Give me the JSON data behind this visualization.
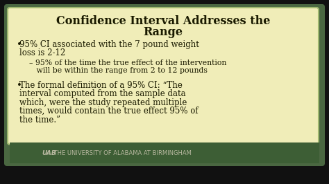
{
  "title_line1": "Confidence Interval Addresses the",
  "title_line2": "Range",
  "bullet1_line1": "95% CI associated with the 7 pound weight",
  "bullet1_line2": "loss is 2-12",
  "sub_bullet1": "– 95% of the time the true effect of the intervention",
  "sub_bullet2": "   will be within the range from 2 to 12 pounds",
  "bullet2_line1": "The formal definition of a 95% CI: “The",
  "bullet2_line2": "interval computed from the sample data",
  "bullet2_line3": "which, were the study repeated multiple",
  "bullet2_line4": "times, would contain the true effect 95% of",
  "bullet2_line5": "the time.”",
  "footer_logo": "UAB",
  "footer_text": " THE UNIVERSITY OF ALABAMA AT BIRMINGHAM",
  "bg_color": "#f0edb8",
  "slide_bg": "#111111",
  "border_color_dark": "#4a6741",
  "footer_bg": "#3d5e35",
  "title_color": "#1a1a00",
  "body_color": "#1a1a00",
  "footer_color": "#b8b8a0",
  "title_fontsize": 11.5,
  "body_fontsize": 8.5,
  "sub_fontsize": 7.8,
  "footer_fontsize": 6.5
}
